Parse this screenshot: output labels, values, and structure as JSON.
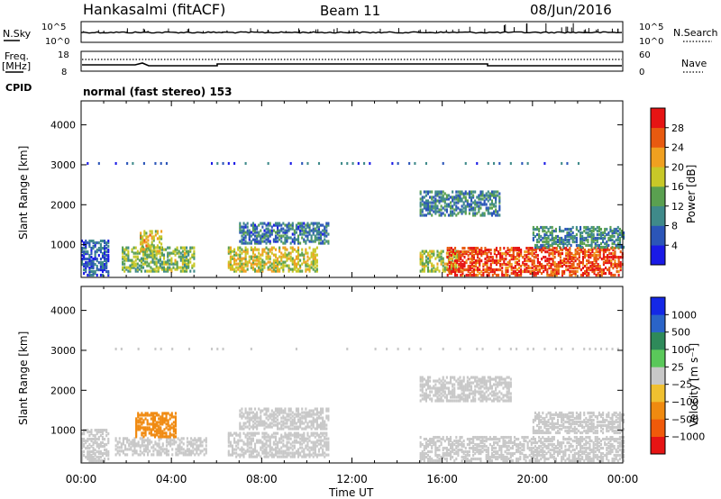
{
  "header": {
    "station": "Hankasalmi (fitACF)",
    "beam": "Beam 11",
    "date": "08/Jun/2016"
  },
  "strips": {
    "nsky_label": "N.Sky",
    "nsky_ticks": [
      "10^5",
      "10^0"
    ],
    "nsearch_label": "N.Search",
    "nsearch_ticks": [
      "10^5",
      "10^0"
    ],
    "freq_label_1": "Freq.",
    "freq_label_2": "[MHz]",
    "freq_ticks": [
      "18",
      "8"
    ],
    "nave_label": "Nave",
    "nave_ticks": [
      "60",
      "0"
    ],
    "cpid_label": "CPID",
    "cpid_text": "normal (fast stereo) 153"
  },
  "colors": {
    "power": [
      "#1a1ae6",
      "#2b55b8",
      "#3f8a8a",
      "#5aa050",
      "#c8c828",
      "#f0a020",
      "#e85a10",
      "#e61414"
    ],
    "velocity": [
      "#1428e6",
      "#2a64c8",
      "#2e8a5a",
      "#5ac85a",
      "#c8c8c8",
      "#f0c030",
      "#f08a10",
      "#f05a0a",
      "#e61414"
    ]
  },
  "chart_data": [
    {
      "type": "heatmap",
      "title": "Power",
      "ylabel": "Slant Range [km]",
      "xlabel": "Time UT",
      "ylim": [
        180,
        4600
      ],
      "yticks": [
        "1000",
        "2000",
        "3000",
        "4000"
      ],
      "xticks": [
        "00:00",
        "04:00",
        "08:00",
        "12:00",
        "16:00",
        "20:00",
        "00:00"
      ],
      "colorbar": {
        "label": "Power [dB]",
        "ticks": [
          "4",
          "8",
          "12",
          "16",
          "20",
          "24",
          "28"
        ],
        "range": [
          0,
          30
        ]
      },
      "regions": [
        {
          "t": [
            0.0,
            1.2
          ],
          "r": [
            200,
            1100
          ],
          "level": 6
        },
        {
          "t": [
            1.8,
            5.0
          ],
          "r": [
            300,
            900
          ],
          "level": 14
        },
        {
          "t": [
            2.6,
            3.6
          ],
          "r": [
            800,
            1300
          ],
          "level": 18
        },
        {
          "t": [
            6.5,
            10.5
          ],
          "r": [
            300,
            900
          ],
          "level": 17
        },
        {
          "t": [
            7.0,
            11.0
          ],
          "r": [
            1000,
            1500
          ],
          "level": 8
        },
        {
          "t": [
            15.0,
            16.8
          ],
          "r": [
            300,
            800
          ],
          "level": 16
        },
        {
          "t": [
            15.0,
            18.5
          ],
          "r": [
            1700,
            2300
          ],
          "level": 9
        },
        {
          "t": [
            16.2,
            24.0
          ],
          "r": [
            200,
            900
          ],
          "level": 26
        },
        {
          "t": [
            20.0,
            24.0
          ],
          "r": [
            900,
            1400
          ],
          "level": 10
        }
      ]
    },
    {
      "type": "heatmap",
      "title": "Velocity",
      "ylabel": "Slant Range [km]",
      "xlabel": "Time UT",
      "ylim": [
        180,
        4600
      ],
      "yticks": [
        "1000",
        "2000",
        "3000",
        "4000"
      ],
      "xticks": [
        "00:00",
        "04:00",
        "08:00",
        "12:00",
        "16:00",
        "20:00",
        "00:00"
      ],
      "colorbar": {
        "label": "Velocity [m s⁻¹]",
        "ticks": [
          "1000",
          "500",
          "100",
          "25",
          "−25",
          "−100",
          "−500",
          "−1000"
        ],
        "range": [
          -1500,
          1500
        ]
      },
      "regions": [
        {
          "t": [
            0.0,
            1.2
          ],
          "r": [
            200,
            1000
          ],
          "level": 0
        },
        {
          "t": [
            1.5,
            5.5
          ],
          "r": [
            350,
            800
          ],
          "level": 0
        },
        {
          "t": [
            2.4,
            4.2
          ],
          "r": [
            800,
            1400
          ],
          "level": -250
        },
        {
          "t": [
            6.5,
            11.0
          ],
          "r": [
            300,
            900
          ],
          "level": 0
        },
        {
          "t": [
            7.0,
            11.0
          ],
          "r": [
            1000,
            1500
          ],
          "level": 0
        },
        {
          "t": [
            15.0,
            24.0
          ],
          "r": [
            200,
            800
          ],
          "level": 0
        },
        {
          "t": [
            15.0,
            19.0
          ],
          "r": [
            1700,
            2300
          ],
          "level": 0
        },
        {
          "t": [
            20.0,
            24.0
          ],
          "r": [
            900,
            1400
          ],
          "level": 0
        }
      ]
    }
  ]
}
